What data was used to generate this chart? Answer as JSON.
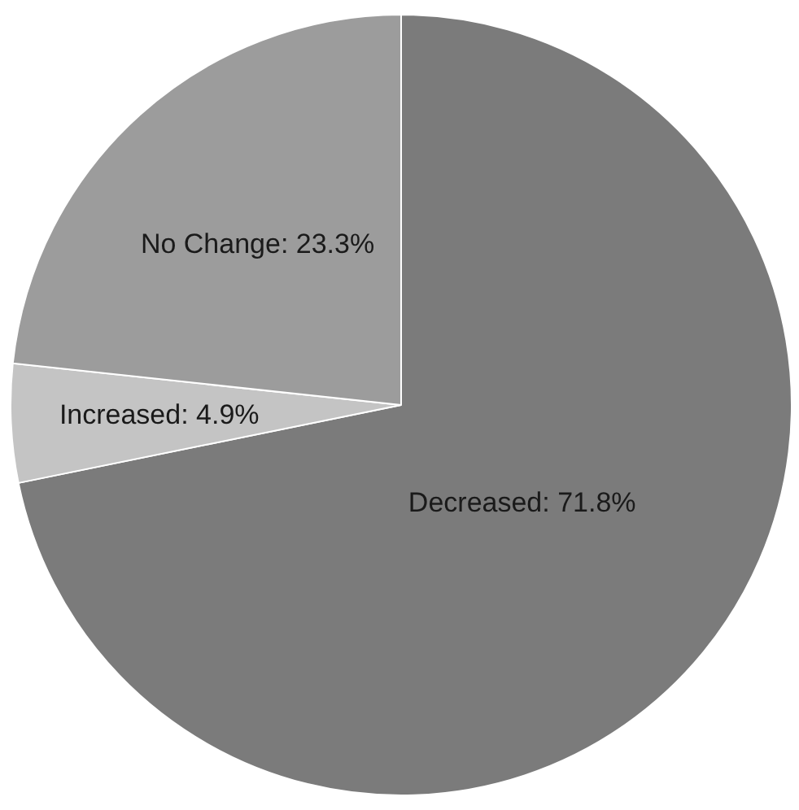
{
  "chart_data": {
    "type": "pie",
    "categories": [
      "Decreased",
      "Increased",
      "No Change"
    ],
    "values": [
      71.8,
      4.9,
      23.3
    ],
    "value_labels": [
      "71.8%",
      "4.9%",
      "23.3%"
    ],
    "colors": [
      "#7b7b7b",
      "#c4c4c4",
      "#9c9c9c"
    ],
    "legend": false
  }
}
